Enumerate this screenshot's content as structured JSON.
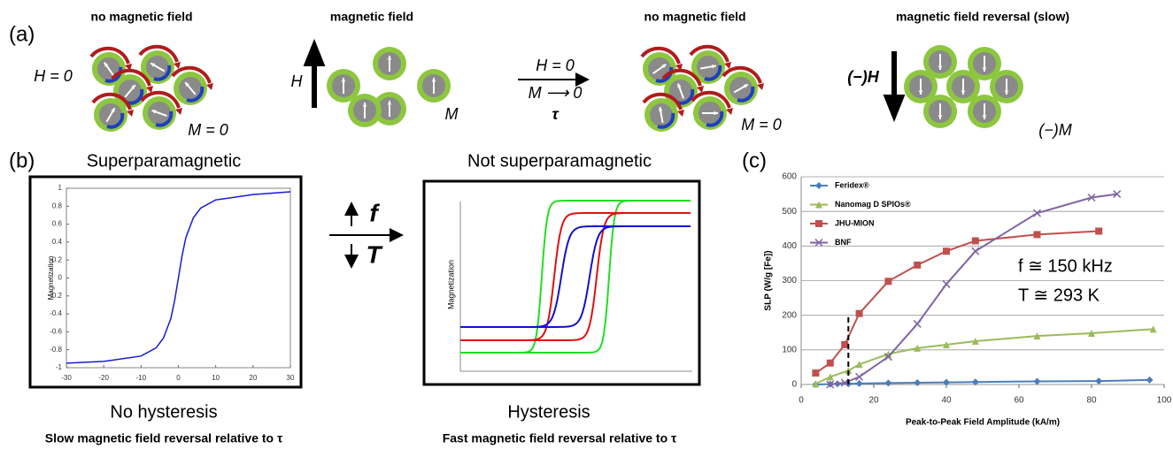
{
  "panel_a": {
    "label": "(a)",
    "states": [
      {
        "title": "no magnetic field",
        "field": "H = 0",
        "magnetization": "M = 0"
      },
      {
        "title": "magnetic field",
        "field": "H",
        "magnetization": "M"
      },
      {
        "title": "no magnetic field",
        "magnetization": "M = 0"
      },
      {
        "title": "magnetic field reversal (slow)",
        "field": "(−)H",
        "magnetization": "(−)M"
      }
    ],
    "transition": {
      "field": "H = 0",
      "magnetization": "M ⟶ 0",
      "time": "τ"
    }
  },
  "panel_b": {
    "label": "(b)",
    "left": {
      "title": "Superparamagnetic",
      "caption": "No hysteresis",
      "note": "Slow magnetic field reversal relative to τ"
    },
    "right": {
      "title": "Not superparamagnetic",
      "caption": "Hysteresis",
      "note": "Fast magnetic field reversal relative to τ",
      "ylabel": "Magnetization"
    },
    "arrow": {
      "up": "f",
      "down": "T"
    }
  },
  "panel_c_label": "(c)",
  "chart_data": [
    {
      "type": "line",
      "ylabel": "Magnetization",
      "color": "#1a1ad6",
      "x": [
        -30,
        -20,
        -10,
        -6,
        -4,
        -2,
        -1,
        0,
        1,
        2,
        4,
        6,
        10,
        20,
        30
      ],
      "values": [
        -0.95,
        -0.93,
        -0.87,
        -0.78,
        -0.67,
        -0.45,
        -0.25,
        0,
        0.25,
        0.45,
        0.67,
        0.78,
        0.87,
        0.93,
        0.96
      ],
      "xlim": [
        -30,
        30
      ],
      "xticks": [
        -30,
        -20,
        -10,
        0,
        10,
        20,
        30
      ],
      "ylim": [
        -1,
        1
      ],
      "yticks": [
        -1,
        -0.8,
        -0.6,
        -0.4,
        -0.2,
        0,
        0.2,
        0.4,
        0.6,
        0.8,
        1
      ]
    },
    {
      "type": "line",
      "xlabel": "Peak-to-Peak Field Amplitude (kA/m)",
      "ylabel": "SLP (W/g [Fe])",
      "xlim": [
        0,
        100
      ],
      "xticks": [
        0,
        20,
        40,
        60,
        80,
        100
      ],
      "ylim": [
        0,
        600
      ],
      "yticks": [
        0,
        100,
        200,
        300,
        400,
        500,
        600
      ],
      "grid": true,
      "legend": "top-left",
      "reference_x": 13,
      "annotations": [
        "f ≅ 150 kHz",
        "T ≅ 293 K"
      ],
      "series": [
        {
          "name": "Feridex®",
          "color": "#4a7ebb",
          "marker": "diamond",
          "x": [
            4,
            8,
            10,
            13,
            16,
            24,
            32,
            40,
            48,
            65,
            82,
            96
          ],
          "values": [
            0,
            1,
            2,
            2,
            3,
            4,
            5,
            6,
            7,
            9,
            10,
            13
          ]
        },
        {
          "name": "Nanomag D SPIOs®",
          "color": "#9bbb59",
          "marker": "triangle",
          "x": [
            4,
            8,
            13,
            16,
            24,
            32,
            40,
            48,
            65,
            80,
            97
          ],
          "values": [
            2,
            22,
            40,
            58,
            88,
            105,
            115,
            125,
            140,
            148,
            160
          ]
        },
        {
          "name": "JHU-MION",
          "color": "#c0504d",
          "marker": "square",
          "x": [
            4,
            8,
            12,
            16,
            24,
            32,
            40,
            48,
            65,
            82
          ],
          "values": [
            33,
            62,
            115,
            205,
            298,
            345,
            385,
            415,
            433,
            443
          ]
        },
        {
          "name": "BNF",
          "color": "#8064a2",
          "marker": "x",
          "x": [
            8,
            12,
            16,
            24,
            32,
            40,
            48,
            65,
            80,
            87
          ],
          "values": [
            0,
            5,
            22,
            80,
            175,
            290,
            385,
            495,
            540,
            550
          ]
        }
      ]
    }
  ]
}
